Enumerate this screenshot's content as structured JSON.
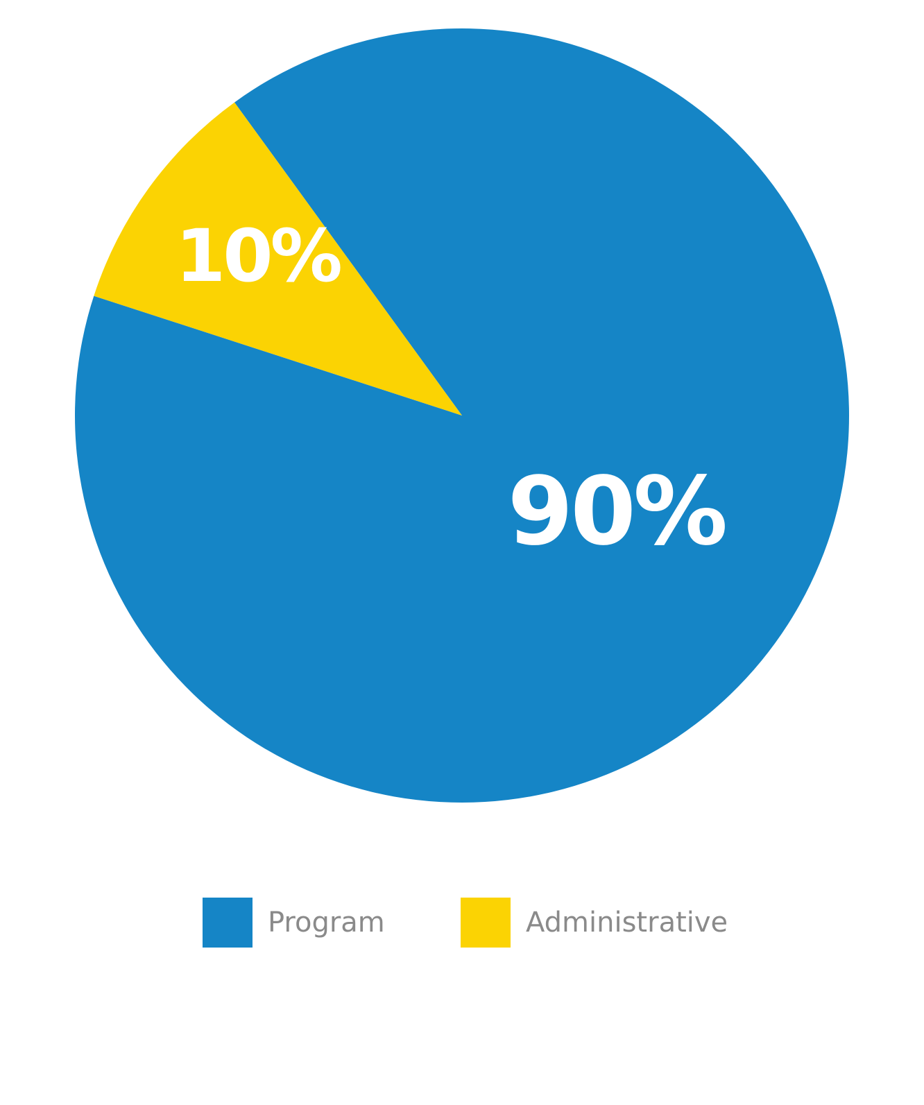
{
  "chart_data": {
    "type": "pie",
    "slices": [
      {
        "name": "Program",
        "value": 90,
        "label": "90%",
        "color": "#1585c6"
      },
      {
        "name": "Administrative",
        "value": 10,
        "label": "10%",
        "color": "#fbd303"
      }
    ],
    "start_angle_deg": -36,
    "direction": "clockwise",
    "legend": {
      "position": "bottom",
      "items": [
        "Program",
        "Administrative"
      ]
    }
  }
}
